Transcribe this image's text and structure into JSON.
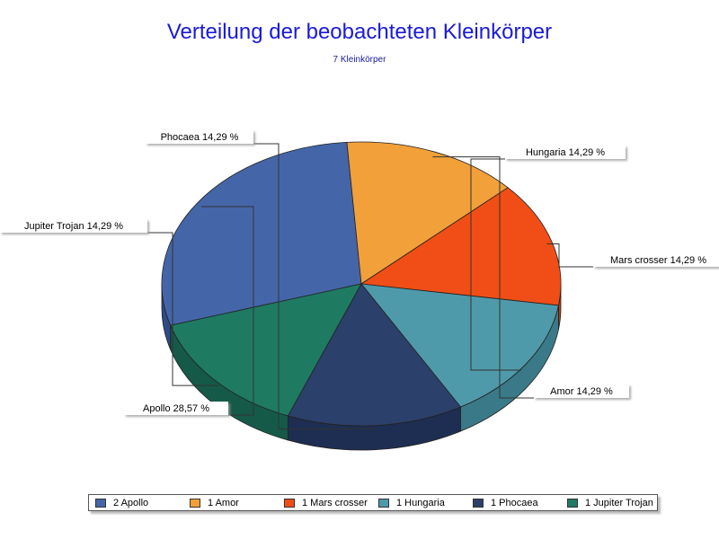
{
  "chart_data": {
    "type": "pie",
    "title": "Verteilung der beobachteten Kleinkörper",
    "subtitle": "7 Kleinkörper",
    "slices": [
      {
        "name": "Apollo",
        "value": 2,
        "label": "Apollo 28,57 %",
        "legend": "2 Apollo",
        "color": "#4466a8",
        "side": "#2e4a88"
      },
      {
        "name": "Amor",
        "value": 1,
        "label": "Amor 14,29 %",
        "legend": "1 Amor",
        "color": "#f2a03a",
        "side": "#d0821e"
      },
      {
        "name": "Mars crosser",
        "value": 1,
        "label": "Mars crosser 14,29 %",
        "legend": "1 Mars crosser",
        "color": "#f04e16",
        "side": "#c23a0c"
      },
      {
        "name": "Hungaria",
        "value": 1,
        "label": "Hungaria 14,29 %",
        "legend": "1 Hungaria",
        "color": "#4f9aaa",
        "side": "#3a7a88"
      },
      {
        "name": "Phocaea",
        "value": 1,
        "label": "Phocaea 14,29 %",
        "legend": "1 Phocaea",
        "color": "#2c406c",
        "side": "#1e2e52"
      },
      {
        "name": "Jupiter Trojan",
        "value": 1,
        "label": "Jupiter Trojan 14,29 %",
        "legend": "1 Jupiter Trojan",
        "color": "#1f7a62",
        "side": "#155a48"
      }
    ],
    "legend_position": "bottom"
  }
}
